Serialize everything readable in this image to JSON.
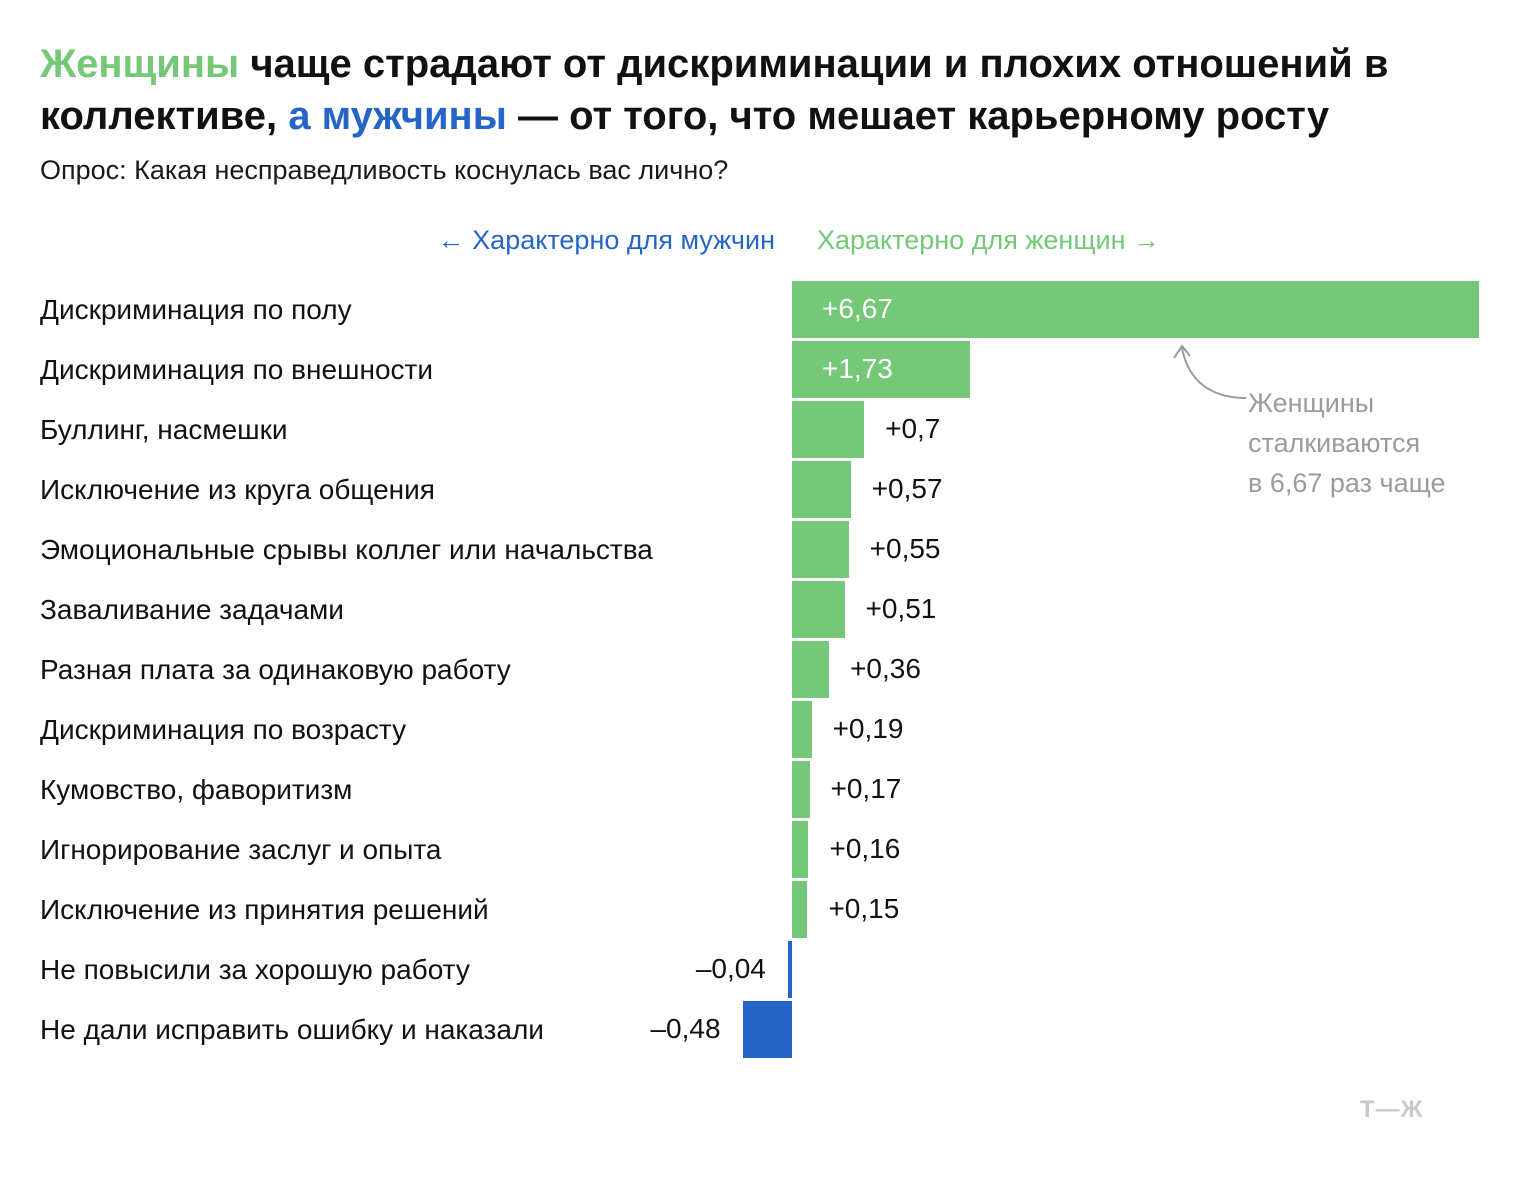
{
  "title": {
    "part1": "Женщины",
    "part2": " чаще страдают от дискриминации и плохих отношений в коллективе, ",
    "part3": "а мужчины",
    "part4": " — от того, что мешает карьерному росту"
  },
  "subtitle": "Опрос: Какая несправедливость коснулась вас лично?",
  "directions": {
    "men": "← Характерно для мужчин",
    "women": "Характерно для женщин →"
  },
  "annotation": {
    "line1": "Женщины",
    "line2": "сталкиваются",
    "line3": "в 6,67 раз чаще"
  },
  "logo": "Т—Ж",
  "colors": {
    "women": "#74c877",
    "men": "#2565c7",
    "annotation": "#9b9b9b"
  },
  "chart_data": {
    "type": "bar",
    "orientation": "horizontal",
    "categories": [
      "Дискриминация по полу",
      "Дискриминация по внешности",
      "Буллинг, насмешки",
      "Исключение из круга общения",
      "Эмоциональные срывы коллег или начальства",
      "Заваливание задачами",
      "Разная плата за одинаковую работу",
      "Дискриминация по возрасту",
      "Кумовство, фаворитизм",
      "Игнорирование заслуг и опыта",
      "Исключение из принятия решений",
      "Не повысили за хорошую работу",
      "Не дали исправить ошибку и наказали"
    ],
    "values": [
      6.67,
      1.73,
      0.7,
      0.57,
      0.55,
      0.51,
      0.36,
      0.19,
      0.17,
      0.16,
      0.15,
      -0.04,
      -0.48
    ],
    "labels": [
      "+6,67",
      "+1,73",
      "+0,7",
      "+0,57",
      "+0,55",
      "+0,51",
      "+0,36",
      "+0,19",
      "+0,17",
      "+0,16",
      "+0,15",
      "–0,04",
      "–0,48"
    ],
    "xlim": [
      -0.48,
      6.67
    ],
    "grid": false
  }
}
